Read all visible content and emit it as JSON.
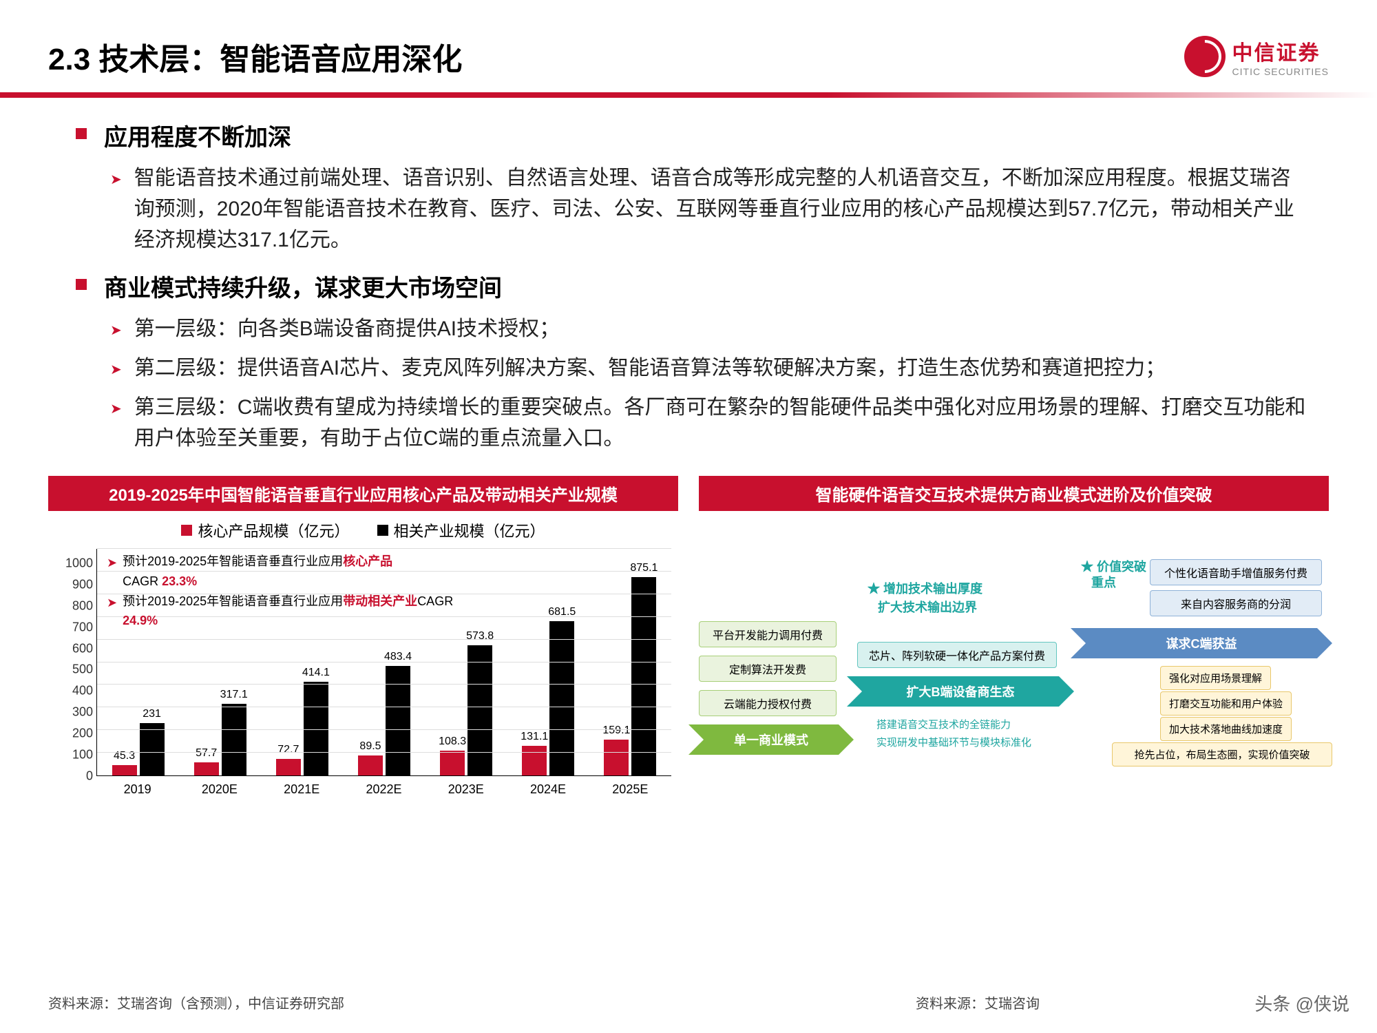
{
  "header": {
    "title": "2.3 技术层：智能语音应用深化",
    "logo_cn": "中信证券",
    "logo_en": "CITIC SECURITIES"
  },
  "sections": [
    {
      "heading": "应用程度不断加深",
      "bullets": [
        "智能语音技术通过前端处理、语音识别、自然语言处理、语音合成等形成完整的人机语音交互，不断加深应用程度。根据艾瑞咨询预测，2020年智能语音技术在教育、医疗、司法、公安、互联网等垂直行业应用的核心产品规模达到57.7亿元，带动相关产业经济规模达317.1亿元。"
      ]
    },
    {
      "heading": "商业模式持续升级，谋求更大市场空间",
      "bullets": [
        "第一层级：向各类B端设备商提供AI技术授权；",
        "第二层级：提供语音AI芯片、麦克风阵列解决方案、智能语音算法等软硬解决方案，打造生态优势和赛道把控力；",
        "第三层级：C端收费有望成为持续增长的重要突破点。各厂商可在繁杂的智能硬件品类中强化对应用场景的理解、打磨交互功能和用户体验至关重要，有助于占位C端的重点流量入口。"
      ]
    }
  ],
  "colors": {
    "accent": "#c8102e",
    "black": "#000000",
    "stage1_bg": "#7fb93f",
    "stage1_box_bg": "#eaf3de",
    "stage1_box_border": "#a7cf78",
    "stage2_bg": "#1fa6a0",
    "stage2_box_bg": "#d8f1ef",
    "stage2_box_border": "#63c6c0",
    "stage3_bg": "#5b8bc3",
    "stage3_box_bg": "#e2ecf6",
    "stage3_box_border": "#8fb2d8",
    "stage3_sub_bg": "#fff5d9",
    "stage3_sub_border": "#e8c76b"
  },
  "chart_left": {
    "title": "2019-2025年中国智能语音垂直行业应用核心产品及带动相关产业规模",
    "legend": [
      {
        "label": "核心产品规模（亿元）",
        "color": "#c8102e"
      },
      {
        "label": "相关产业规模（亿元）",
        "color": "#000000"
      }
    ],
    "ymax": 1000,
    "ytick": 100,
    "categories": [
      "2019",
      "2020E",
      "2021E",
      "2022E",
      "2023E",
      "2024E",
      "2025E"
    ],
    "series_core": [
      45.3,
      57.7,
      72.7,
      89.5,
      108.3,
      131.1,
      159.1
    ],
    "series_related": [
      231,
      317.1,
      414.1,
      483.4,
      573.8,
      681.5,
      875.1
    ],
    "note1_pre": "预计2019-2025年智能语音垂直行业应用",
    "note1_bold": "核心产品",
    "note1_cagr_label": "CAGR",
    "note1_cagr": "23.3%",
    "note2_pre": "预计2019-2025年智能语音垂直行业应用",
    "note2_bold": "带动相关产业",
    "note2_cagr_label": "CAGR",
    "note2_cagr": "24.9%",
    "source": "资料来源：艾瑞咨询（含预测），中信证券研究部"
  },
  "chart_right": {
    "title": "智能硬件语音交互技术提供方商业模式进阶及价值突破",
    "source": "资料来源：艾瑞咨询",
    "stages": [
      {
        "label": "单一商业模式"
      },
      {
        "label": "扩大B端设备商生态"
      },
      {
        "label": "谋求C端获益"
      }
    ],
    "stage1_boxes": [
      "平台开发能力调用付费",
      "定制算法开发费",
      "云端能力授权付费"
    ],
    "stage2_header": [
      "增加技术输出厚度",
      "扩大技术输出边界"
    ],
    "stage2_boxes": [
      "芯片、阵列软硬一体化产品方案付费",
      "搭建语音交互技术的全链能力",
      "实现研发中基础环节与模块标准化"
    ],
    "stage3_star": "价值突破重点",
    "stage3_boxes": [
      "个性化语音助手增值服务付费",
      "来自内容服务商的分润"
    ],
    "stage3_sub": [
      "强化对应用场景理解",
      "打磨交互功能和用户体验",
      "加大技术落地曲线加速度",
      "抢先占位，布局生态圈，实现价值突破"
    ]
  },
  "watermark": "头条 @侠说"
}
